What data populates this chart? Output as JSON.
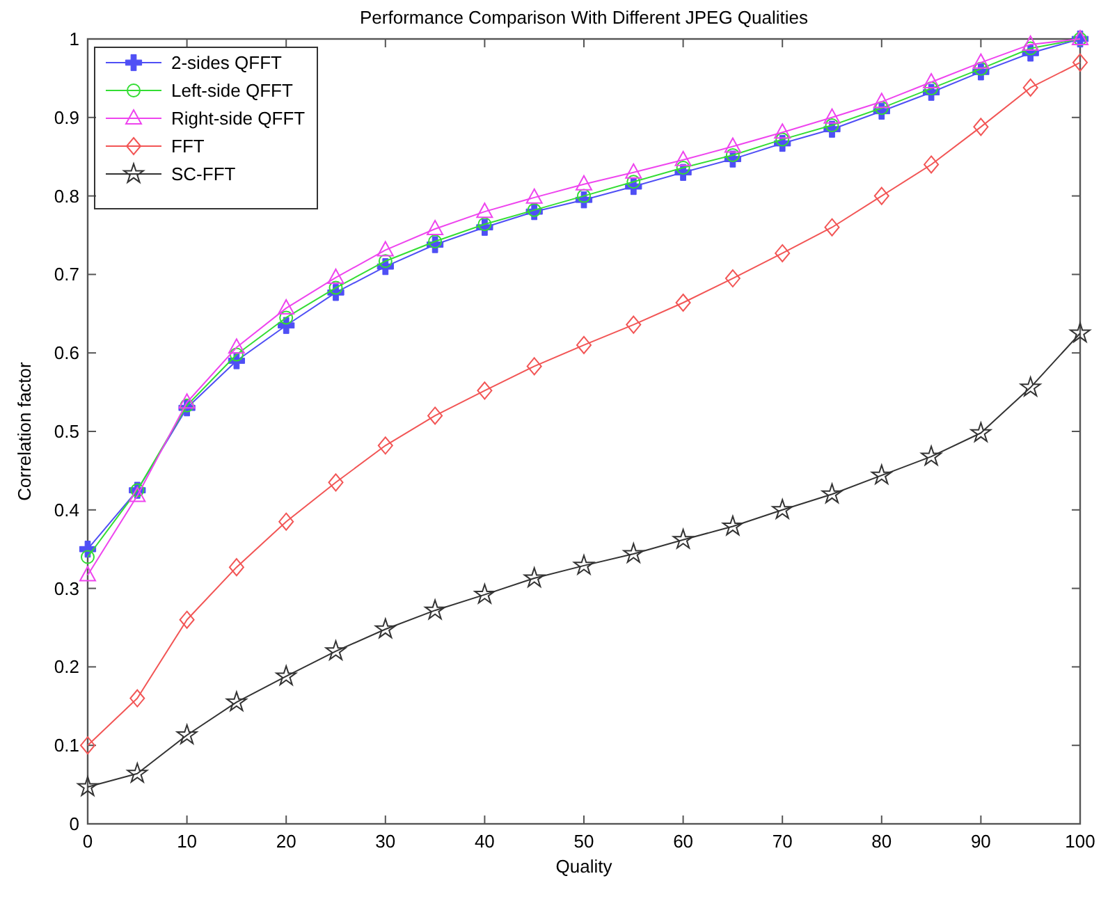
{
  "chart_data": {
    "type": "line",
    "title": "Performance Comparison With Different JPEG Qualities",
    "xlabel": "Quality",
    "ylabel": "Correlation factor",
    "x": [
      0,
      5,
      10,
      15,
      20,
      25,
      30,
      35,
      40,
      45,
      50,
      55,
      60,
      65,
      70,
      75,
      80,
      85,
      90,
      95,
      100
    ],
    "xlim": [
      0,
      100
    ],
    "xticks": [
      0,
      10,
      20,
      30,
      40,
      50,
      60,
      70,
      80,
      90,
      100
    ],
    "ylim": [
      0,
      1
    ],
    "yticks": [
      0,
      0.1,
      0.2,
      0.3,
      0.4,
      0.5,
      0.6,
      0.7,
      0.8,
      0.9,
      1
    ],
    "grid": false,
    "legend": "top left",
    "line_style": "solid",
    "series": [
      {
        "name": "2-sides QFFT",
        "color": "#4f4ff5",
        "marker": "cross",
        "values": [
          0.35,
          0.425,
          0.53,
          0.59,
          0.635,
          0.677,
          0.71,
          0.738,
          0.76,
          0.78,
          0.795,
          0.812,
          0.83,
          0.847,
          0.867,
          0.885,
          0.908,
          0.932,
          0.958,
          0.982,
          1.0
        ]
      },
      {
        "name": "Left-side QFFT",
        "color": "#33dd33",
        "marker": "circle",
        "values": [
          0.34,
          0.425,
          0.533,
          0.598,
          0.645,
          0.683,
          0.717,
          0.742,
          0.764,
          0.782,
          0.8,
          0.818,
          0.836,
          0.852,
          0.872,
          0.89,
          0.912,
          0.937,
          0.962,
          0.988,
          1.0
        ]
      },
      {
        "name": "Right-side QFFT",
        "color": "#ee44ee",
        "marker": "triangle",
        "values": [
          0.317,
          0.418,
          0.537,
          0.607,
          0.657,
          0.696,
          0.731,
          0.758,
          0.78,
          0.798,
          0.815,
          0.83,
          0.846,
          0.863,
          0.881,
          0.9,
          0.92,
          0.945,
          0.97,
          0.993,
          1.0
        ]
      },
      {
        "name": "FFT",
        "color": "#f25555",
        "marker": "diamond",
        "values": [
          0.1,
          0.16,
          0.26,
          0.327,
          0.385,
          0.435,
          0.482,
          0.52,
          0.552,
          0.583,
          0.61,
          0.636,
          0.664,
          0.695,
          0.727,
          0.76,
          0.8,
          0.84,
          0.888,
          0.938,
          0.97
        ]
      },
      {
        "name": "SC-FFT",
        "color": "#333333",
        "marker": "star",
        "values": [
          0.047,
          0.064,
          0.113,
          0.155,
          0.188,
          0.22,
          0.248,
          0.272,
          0.292,
          0.313,
          0.329,
          0.344,
          0.362,
          0.379,
          0.4,
          0.42,
          0.444,
          0.468,
          0.498,
          0.556,
          0.625
        ]
      }
    ]
  }
}
